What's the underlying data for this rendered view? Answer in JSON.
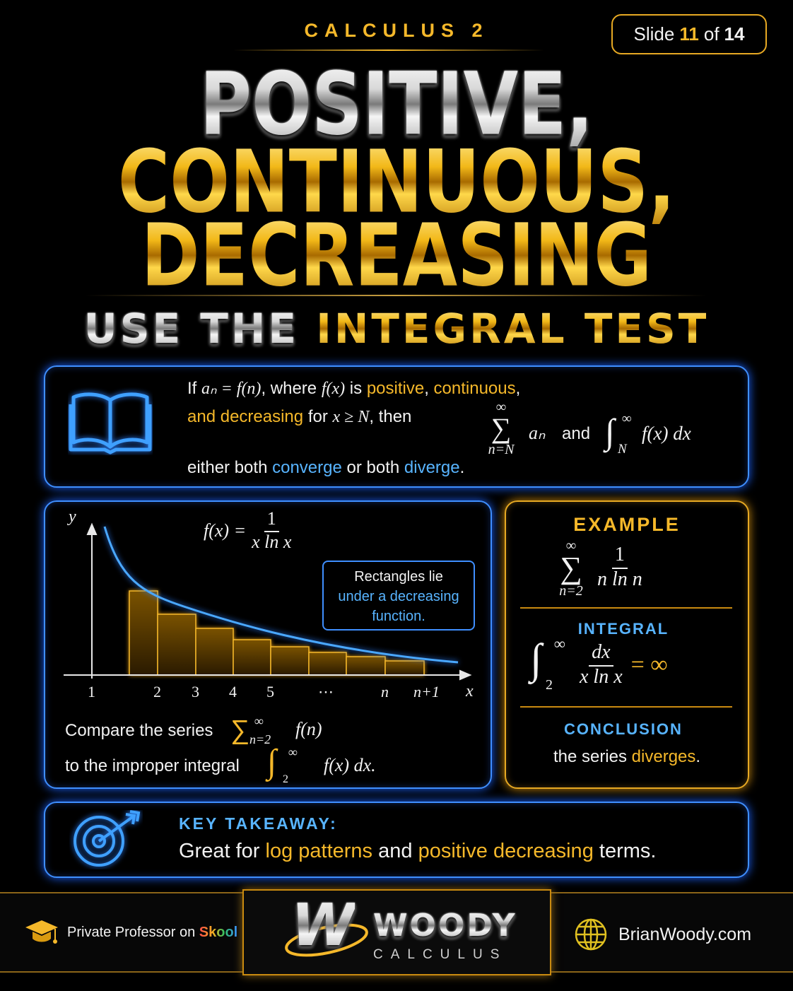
{
  "header": {
    "course": "CALCULUS 2",
    "slide": {
      "label": "Slide",
      "current": "11",
      "separator": "of",
      "total": "14"
    }
  },
  "title": {
    "lines": [
      "POSITIVE,",
      "CONTINUOUS,",
      "DECREASING"
    ],
    "subtitle": {
      "lead": "USE THE",
      "highlight": "INTEGRAL TEST"
    }
  },
  "theorem": {
    "line1": [
      "If",
      "aₙ = f(n)",
      ", where",
      "f(x)",
      "is",
      "positive",
      ",",
      "continuous",
      ","
    ],
    "line2": [
      "and",
      "decreasing",
      "for",
      "x ≥ N",
      ", then"
    ],
    "sum": {
      "upper": "∞",
      "symbol": "∑",
      "lower": "n=N",
      "term": "aₙ"
    },
    "and": "and",
    "integral": {
      "symbol": "∫",
      "lower": "N",
      "upper": "∞",
      "integrand": "f(x) dx"
    },
    "line3": [
      "either both",
      "converge",
      "or both",
      "diverge",
      "."
    ]
  },
  "graph": {
    "axis_y": "y",
    "axis_x": "x",
    "function": {
      "lhs": "f(x) =",
      "numerator": "1",
      "denominator": "x ln x"
    },
    "x_labels": [
      "1",
      "2",
      "3",
      "4",
      "5",
      "⋯",
      "n",
      "n+1"
    ],
    "callout": [
      "Rectangles lie",
      "under a",
      "decreasing",
      "function."
    ],
    "compare": {
      "line1": "Compare the series",
      "sum": {
        "symbol": "∑",
        "lower": "n=2",
        "upper": "∞",
        "term": "f(n)"
      },
      "line2": "to the improper integral",
      "integral": {
        "symbol": "∫",
        "lower": "2",
        "upper": "∞",
        "integrand": "f(x) dx."
      }
    }
  },
  "example": {
    "heading": "EXAMPLE",
    "sum": {
      "upper": "∞",
      "symbol": "∑",
      "lower": "n=2",
      "numerator": "1",
      "denominator": "n ln n"
    },
    "integral_heading": "INTEGRAL",
    "integral": {
      "symbol": "∫",
      "lower": "2",
      "upper": "∞",
      "numerator": "dx",
      "denominator": "x ln x",
      "result": "= ∞"
    },
    "conclusion_heading": "CONCLUSION",
    "conclusion": [
      "the series",
      "diverges",
      "."
    ]
  },
  "takeaway": {
    "heading": "KEY TAKEAWAY:",
    "text": [
      "Great for",
      "log patterns",
      "and",
      "positive decreasing",
      "terms."
    ]
  },
  "footer": {
    "left": {
      "text": "Private Professor on",
      "brand": "Skool"
    },
    "logo": {
      "mark": "W",
      "name": "WOODY",
      "sub": "CALCULUS"
    },
    "right": "BrianWoody.com"
  }
}
